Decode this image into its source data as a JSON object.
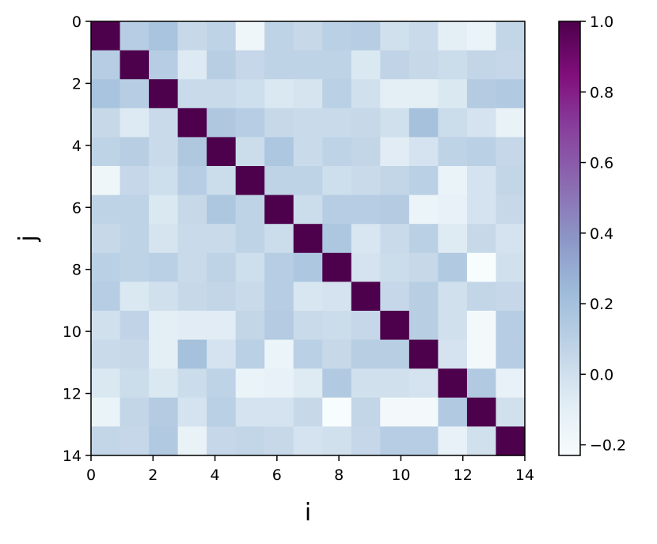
{
  "chart_data": {
    "type": "heatmap",
    "title": "",
    "xlabel": "i",
    "ylabel": "j",
    "x_ticks": [
      "0",
      "2",
      "4",
      "6",
      "8",
      "10",
      "12",
      "14"
    ],
    "y_ticks": [
      "0",
      "2",
      "4",
      "6",
      "8",
      "10",
      "12",
      "14"
    ],
    "xlim": [
      0,
      14
    ],
    "ylim": [
      14,
      0
    ],
    "colormap": "BuPu",
    "color_range": [
      -0.23,
      1.0
    ],
    "colorbar_ticks": [
      "−0.2",
      "0.0",
      "0.2",
      "0.4",
      "0.6",
      "0.8",
      "1.0"
    ],
    "colorbar_tick_values": [
      -0.2,
      0.0,
      0.2,
      0.4,
      0.6,
      0.8,
      1.0
    ],
    "grid": false,
    "matrix": [
      [
        1.0,
        0.12,
        0.18,
        0.04,
        0.08,
        -0.17,
        0.08,
        0.04,
        0.1,
        0.12,
        0.0,
        0.03,
        -0.1,
        -0.14,
        0.06
      ],
      [
        0.12,
        1.0,
        0.12,
        -0.06,
        0.11,
        0.05,
        0.08,
        0.08,
        0.08,
        -0.05,
        0.07,
        0.04,
        0.02,
        0.06,
        0.05
      ],
      [
        0.18,
        0.12,
        1.0,
        0.03,
        0.03,
        0.01,
        -0.05,
        -0.03,
        0.1,
        0.0,
        -0.1,
        -0.1,
        -0.05,
        0.13,
        0.14
      ],
      [
        0.04,
        -0.06,
        0.03,
        1.0,
        0.15,
        0.12,
        0.04,
        0.03,
        0.03,
        0.04,
        0.0,
        0.2,
        0.02,
        -0.02,
        -0.13
      ],
      [
        0.08,
        0.11,
        0.03,
        0.15,
        1.0,
        0.02,
        0.16,
        0.03,
        0.08,
        0.06,
        -0.08,
        -0.02,
        0.08,
        0.1,
        0.05
      ],
      [
        -0.17,
        0.05,
        0.01,
        0.12,
        0.02,
        1.0,
        0.08,
        0.08,
        0.01,
        0.03,
        0.06,
        0.1,
        -0.14,
        -0.02,
        0.06
      ],
      [
        0.08,
        0.08,
        -0.05,
        0.04,
        0.16,
        0.08,
        1.0,
        0.02,
        0.12,
        0.12,
        0.13,
        -0.15,
        -0.12,
        -0.02,
        0.04
      ],
      [
        0.04,
        0.08,
        -0.03,
        0.03,
        0.03,
        0.08,
        0.02,
        1.0,
        0.16,
        -0.04,
        0.03,
        0.1,
        -0.07,
        0.04,
        -0.02
      ],
      [
        0.1,
        0.08,
        0.1,
        0.03,
        0.08,
        0.01,
        0.12,
        0.16,
        1.0,
        -0.02,
        0.02,
        0.04,
        0.14,
        -0.23,
        0.0
      ],
      [
        0.12,
        -0.05,
        0.0,
        0.04,
        0.06,
        0.03,
        0.12,
        -0.04,
        -0.02,
        1.0,
        0.05,
        0.11,
        0.0,
        0.06,
        0.05
      ],
      [
        0.0,
        0.07,
        -0.1,
        -0.08,
        -0.08,
        0.06,
        0.13,
        0.03,
        0.02,
        0.05,
        1.0,
        0.11,
        0.0,
        -0.2,
        0.12
      ],
      [
        0.03,
        0.04,
        -0.1,
        0.2,
        -0.02,
        0.1,
        -0.15,
        0.1,
        0.04,
        0.11,
        0.11,
        1.0,
        -0.02,
        -0.2,
        0.12
      ],
      [
        -0.05,
        0.02,
        -0.05,
        0.02,
        0.08,
        -0.14,
        -0.12,
        -0.07,
        0.14,
        0.0,
        0.0,
        -0.02,
        1.0,
        0.14,
        -0.12
      ],
      [
        -0.14,
        0.06,
        0.13,
        -0.02,
        0.1,
        -0.02,
        -0.02,
        0.04,
        -0.23,
        0.06,
        -0.2,
        -0.2,
        0.14,
        1.0,
        0.0
      ],
      [
        0.06,
        0.05,
        0.14,
        -0.13,
        0.05,
        0.06,
        0.04,
        -0.02,
        0.0,
        0.05,
        0.12,
        0.12,
        -0.12,
        0.0,
        1.0
      ]
    ]
  }
}
